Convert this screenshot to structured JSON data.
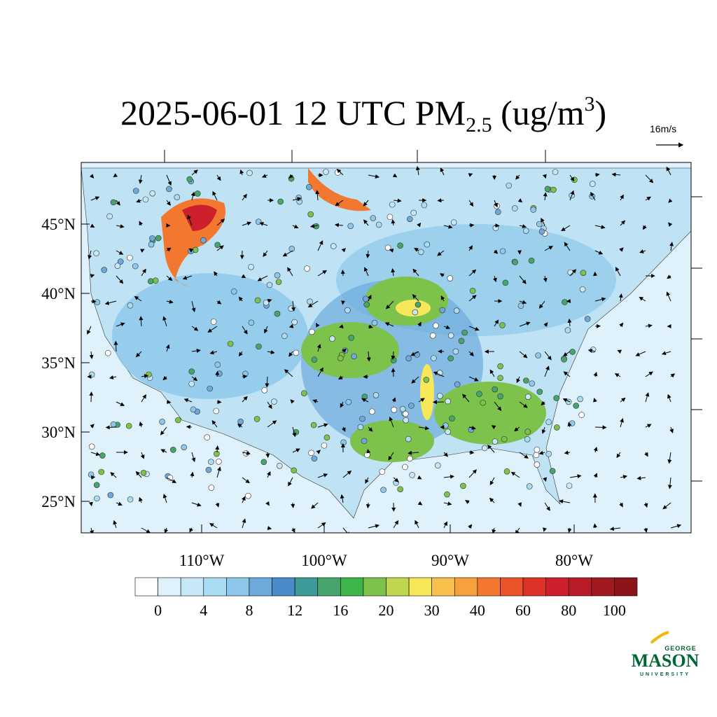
{
  "header": {
    "title_main": "2025-06-01 12 UTC PM",
    "title_sub": "2.5",
    "title_unit": " (ug/m",
    "title_sup": "3",
    "title_close": ")",
    "vector_reference": "16m/s"
  },
  "map": {
    "lat_labels": [
      "45°N",
      "40°N",
      "35°N",
      "30°N",
      "25°N"
    ],
    "lon_labels": [
      "110°W",
      "100°W",
      "90°W",
      "80°W"
    ]
  },
  "colorbar": {
    "colors": [
      "#ffffff",
      "#dff1fa",
      "#c6e7f6",
      "#a9dbf2",
      "#8dc7ea",
      "#6ea9dc",
      "#4a8bc9",
      "#3d9a98",
      "#45a56b",
      "#3fb44a",
      "#7dc24b",
      "#bfd64f",
      "#f7e85a",
      "#f9c14b",
      "#f7a13e",
      "#f3782f",
      "#ea5429",
      "#dd3327",
      "#cd1f2c",
      "#b71c28",
      "#a11a22",
      "#8b1518"
    ],
    "labels": [
      "0",
      "4",
      "8",
      "12",
      "16",
      "20",
      "30",
      "40",
      "60",
      "80",
      "100"
    ]
  },
  "logo": {
    "top": "GEORGE",
    "main": "MASON",
    "bottom": "UNIVERSITY"
  }
}
